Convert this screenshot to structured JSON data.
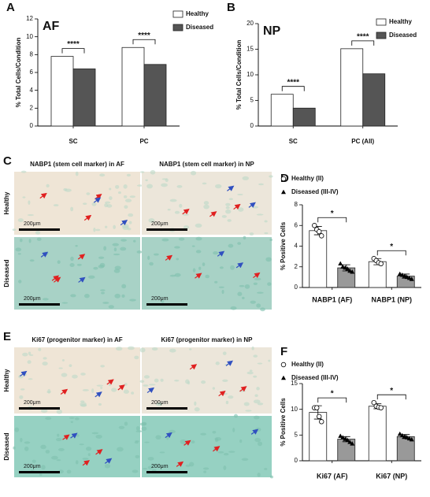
{
  "chart_data": [
    {
      "type": "bar",
      "panel": "A",
      "title": "AF",
      "y_label": "% Total Cells/Condition",
      "categories": [
        "SC",
        "PC"
      ],
      "series": [
        {
          "name": "Healthy",
          "color": "#ffffff",
          "values": [
            7.8,
            8.8
          ]
        },
        {
          "name": "Diseased",
          "color": "#555555",
          "values": [
            6.4,
            6.9
          ]
        }
      ],
      "annotations": [
        "****",
        "****"
      ],
      "legend": "top-right",
      "ylim": [
        0,
        12
      ],
      "yticks": [
        0,
        2,
        4,
        6,
        8,
        10,
        12
      ]
    },
    {
      "type": "bar",
      "panel": "B",
      "title": "NP",
      "y_label": "% Total Cells/Condition",
      "categories": [
        "SC",
        "PC (All)"
      ],
      "series": [
        {
          "name": "Healthy",
          "color": "#ffffff",
          "values": [
            6.2,
            15.1
          ]
        },
        {
          "name": "Diseased",
          "color": "#555555",
          "values": [
            3.5,
            10.2
          ]
        }
      ],
      "annotations": [
        "****",
        "****"
      ],
      "legend": "top-right",
      "ylim": [
        0,
        20
      ],
      "yticks": [
        0,
        5,
        10,
        15,
        20
      ]
    },
    {
      "type": "bar",
      "panel": "D",
      "y_label": "% Positive Cells",
      "categories": [
        "NABP1 (AF)",
        "NABP1 (NP)"
      ],
      "series": [
        {
          "name": "Healthy (II)",
          "color": "#ffffff",
          "marker": "circle",
          "values": [
            5.5,
            2.5
          ],
          "error": [
            0.4,
            0.3
          ],
          "points": [
            [
              6.0,
              5.6,
              5.4,
              5.0
            ],
            [
              2.8,
              2.6,
              2.4,
              2.3
            ]
          ]
        },
        {
          "name": "Diseased (III-IV)",
          "color": "#999999",
          "marker": "triangle",
          "values": [
            1.9,
            1.1
          ],
          "error": [
            0.3,
            0.2
          ],
          "points": [
            [
              2.3,
              2.0,
              1.9,
              1.8,
              1.6,
              1.5
            ],
            [
              1.3,
              1.2,
              1.1,
              1.0,
              0.9,
              0.8
            ]
          ]
        }
      ],
      "annotations": [
        "*",
        "*"
      ],
      "legend": "top-left",
      "ylim": [
        0,
        8
      ],
      "yticks": [
        0,
        2,
        4,
        6,
        8
      ]
    },
    {
      "type": "bar",
      "panel": "F",
      "y_label": "% Positive Cells",
      "categories": [
        "Ki67 (AF)",
        "Ki67 (NP)"
      ],
      "series": [
        {
          "name": "Healthy (II)",
          "color": "#ffffff",
          "marker": "circle",
          "values": [
            9.4,
            10.6
          ],
          "error": [
            1.3,
            0.5
          ],
          "points": [
            [
              10.3,
              10.3,
              8.6,
              7.6
            ],
            [
              11.3,
              10.6,
              10.4,
              10.3
            ]
          ]
        },
        {
          "name": "Diseased (III-IV)",
          "color": "#999999",
          "marker": "triangle",
          "values": [
            4.2,
            4.7
          ],
          "error": [
            0.5,
            0.4
          ],
          "points": [
            [
              4.8,
              4.5,
              4.2,
              4.0,
              3.6,
              3.3
            ],
            [
              5.2,
              4.9,
              4.7,
              4.5,
              4.3,
              4.1
            ]
          ]
        }
      ],
      "annotations": [
        "*",
        "*"
      ],
      "legend": "top-left",
      "ylim": [
        0,
        15
      ],
      "yticks": [
        0,
        5,
        10,
        15
      ]
    }
  ],
  "image_panels": [
    {
      "panel": "C",
      "columns": [
        "NABP1 (stem cell marker) in AF",
        "NABP1 (stem cell marker) in NP"
      ],
      "rows": [
        "Healthy",
        "Diseased"
      ],
      "scale_bar": "200μm"
    },
    {
      "panel": "E",
      "columns": [
        "Ki67 (progenitor marker) in AF",
        "Ki67 (progenitor marker) in NP"
      ],
      "rows": [
        "Healthy",
        "Diseased"
      ],
      "scale_bar": "200μm"
    }
  ]
}
